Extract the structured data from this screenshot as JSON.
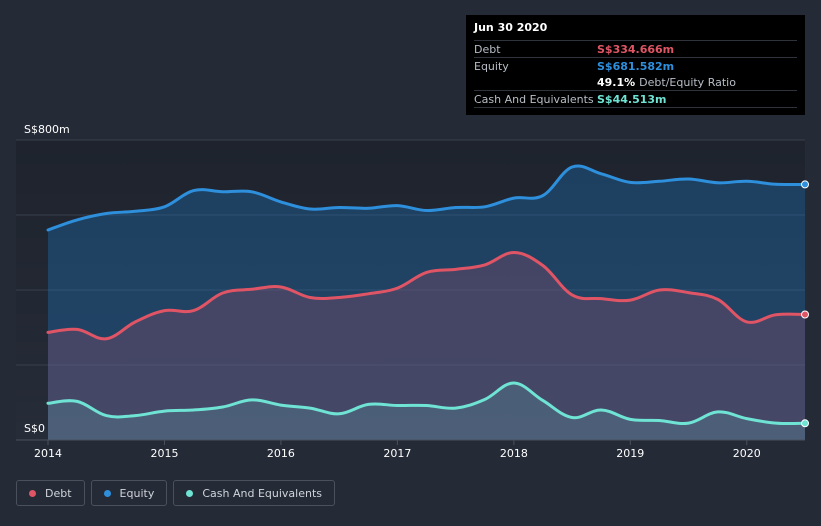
{
  "chart_data": {
    "type": "area",
    "title": "",
    "xlabel": "",
    "ylabel": "",
    "y_axis_top_label": "S$800m",
    "y_axis_bottom_label": "S$0",
    "ylim": [
      0,
      800
    ],
    "xlim": [
      2014,
      2020.5
    ],
    "x_ticks": [
      2014,
      2015,
      2016,
      2017,
      2018,
      2019,
      2020
    ],
    "x_tick_labels": [
      "2014",
      "2015",
      "2016",
      "2017",
      "2018",
      "2019",
      "2020"
    ],
    "series": [
      {
        "name": "Equity",
        "color": "#2e8fdc",
        "x": [
          2014.0,
          2014.25,
          2014.5,
          2014.75,
          2015.0,
          2015.25,
          2015.5,
          2015.75,
          2016.0,
          2016.25,
          2016.5,
          2016.75,
          2017.0,
          2017.25,
          2017.5,
          2017.75,
          2018.0,
          2018.25,
          2018.5,
          2018.75,
          2019.0,
          2019.25,
          2019.5,
          2019.75,
          2020.0,
          2020.25,
          2020.5
        ],
        "values": [
          560,
          587,
          604,
          610,
          622,
          665,
          662,
          662,
          635,
          616,
          620,
          618,
          625,
          612,
          620,
          622,
          645,
          652,
          728,
          710,
          687,
          690,
          696,
          686,
          690,
          682,
          681.582
        ]
      },
      {
        "name": "Debt",
        "color": "#e05565",
        "x": [
          2014.0,
          2014.25,
          2014.5,
          2014.75,
          2015.0,
          2015.25,
          2015.5,
          2015.75,
          2016.0,
          2016.25,
          2016.5,
          2016.75,
          2017.0,
          2017.25,
          2017.5,
          2017.75,
          2018.0,
          2018.25,
          2018.5,
          2018.75,
          2019.0,
          2019.25,
          2019.5,
          2019.75,
          2020.0,
          2020.25,
          2020.5
        ],
        "values": [
          287,
          295,
          270,
          315,
          345,
          345,
          392,
          402,
          408,
          380,
          380,
          390,
          405,
          447,
          455,
          467,
          500,
          465,
          387,
          377,
          373,
          400,
          393,
          375,
          315,
          334,
          334.666
        ]
      },
      {
        "name": "Cash And Equivalents",
        "color": "#6fe3d4",
        "x": [
          2014.0,
          2014.25,
          2014.5,
          2014.75,
          2015.0,
          2015.25,
          2015.5,
          2015.75,
          2016.0,
          2016.25,
          2016.5,
          2016.75,
          2017.0,
          2017.25,
          2017.5,
          2017.75,
          2018.0,
          2018.25,
          2018.5,
          2018.75,
          2019.0,
          2019.25,
          2019.5,
          2019.75,
          2020.0,
          2020.25,
          2020.5
        ],
        "values": [
          98,
          103,
          65,
          65,
          77,
          80,
          88,
          107,
          93,
          85,
          70,
          95,
          92,
          92,
          85,
          108,
          152,
          105,
          60,
          80,
          55,
          52,
          45,
          75,
          57,
          45,
          44.513
        ]
      }
    ]
  },
  "tooltip": {
    "date": "Jun 30 2020",
    "debt_label": "Debt",
    "debt_value": "S$334.666m",
    "equity_label": "Equity",
    "equity_value": "S$681.582m",
    "ratio_value": "49.1%",
    "ratio_label": "Debt/Equity Ratio",
    "cash_label": "Cash And Equivalents",
    "cash_value": "S$44.513m"
  },
  "legend": {
    "debt": "Debt",
    "equity": "Equity",
    "cash": "Cash And Equivalents"
  },
  "colors": {
    "background": "#242a36",
    "debt": "#e05565",
    "equity": "#2e8fdc",
    "cash": "#6fe3d4"
  }
}
